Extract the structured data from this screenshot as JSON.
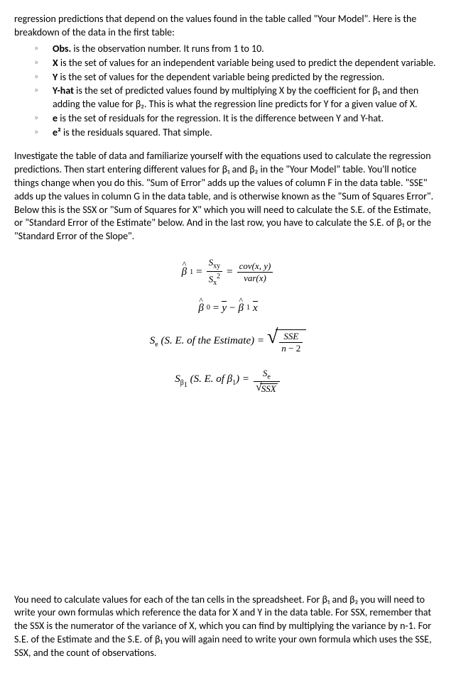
{
  "intro": "regression predictions that depend on the values found in the table called \"Your Model\". Here is the breakdown of the data in the first table:",
  "bullets": [
    {
      "term": "Obs.",
      "text": " is the observation number. It runs from 1 to 10."
    },
    {
      "term": "X",
      "text": " is the set of values for an independent variable being used to predict the dependent variable."
    },
    {
      "term": "Y",
      "text": " is the set of values for the dependent variable being predicted by the regression."
    },
    {
      "term": "Y-hat",
      "text": " is the set of predicted values found by multiplying X by the coefficient for β₁ and then adding the value for β₂. This is what the regression line predicts for Y for a given value of X."
    },
    {
      "term": "e",
      "text": " is the set of residuals for the regression. It is the difference between Y and Y-hat."
    },
    {
      "term": "e²",
      "text": " is the residuals squared. That simple."
    }
  ],
  "para2": "Investigate the table of data and familiarize yourself with the equations used to calculate the regression predictions. Then start entering different values for β₁ and β₂ in the \"Your Model\" table. You'll notice things change when you do this. \"Sum of Error\" adds up the values of column F in the data table. \"SSE\" adds up the values in column G in the data table, and is otherwise known as the \"Sum of Squares Error\". Below this is the SSX or \"Sum of Squares for X\" which you will need to calculate the S.E. of the Estimate, or \"Standard Error of the Estimate\" below. And in the last row, you have to calculate the S.E. of β₁ or the \"Standard Error of the Slope\".",
  "formula_labels": {
    "f1_lhs_var": "β",
    "f1_lhs_sub": "1",
    "f1_num1": "S",
    "f1_num1_sub": "xy",
    "f1_den1": "S",
    "f1_den1_sub": "x",
    "f1_den1_sup": "2",
    "f1_num2": "cov(x, y)",
    "f1_den2": "var(x)",
    "f2_lhs": "β",
    "f2_lhs_sub": "0",
    "f2_eq": " = ",
    "f2_ybar": "y",
    "f2_minus": " − ",
    "f2_b1": "β",
    "f2_b1_sub": "1",
    "f2_xbar": "x",
    "f3_lhs_s": "S",
    "f3_lhs_sub": "e",
    "f3_lhs_text": " (S. E. of the Estimate) = ",
    "f3_num": "SSE",
    "f3_den_n": "n",
    "f3_den_minus": " − 2",
    "f4_lhs_s": "S",
    "f4_lhs_sub1": "β",
    "f4_lhs_sub2": "1",
    "f4_lhs_text": " (S. E. of β",
    "f4_lhs_text_sub": "1",
    "f4_lhs_text2": ") = ",
    "f4_num_s": "S",
    "f4_num_sub": "e",
    "f4_den": "SSX"
  },
  "para3": "You need to calculate values for each of the tan cells in the spreadsheet. For β₁ and β₂ you will need to write your own formulas which reference the data for X and Y in the data table. For SSX, remember that the SSX is the numerator of the variance of X, which you can find by multiplying the variance by n-1. For S.E. of the Estimate and the S.E. of β₁ you will again need to write your own formula which uses the SSE, SSX, and the count of observations."
}
